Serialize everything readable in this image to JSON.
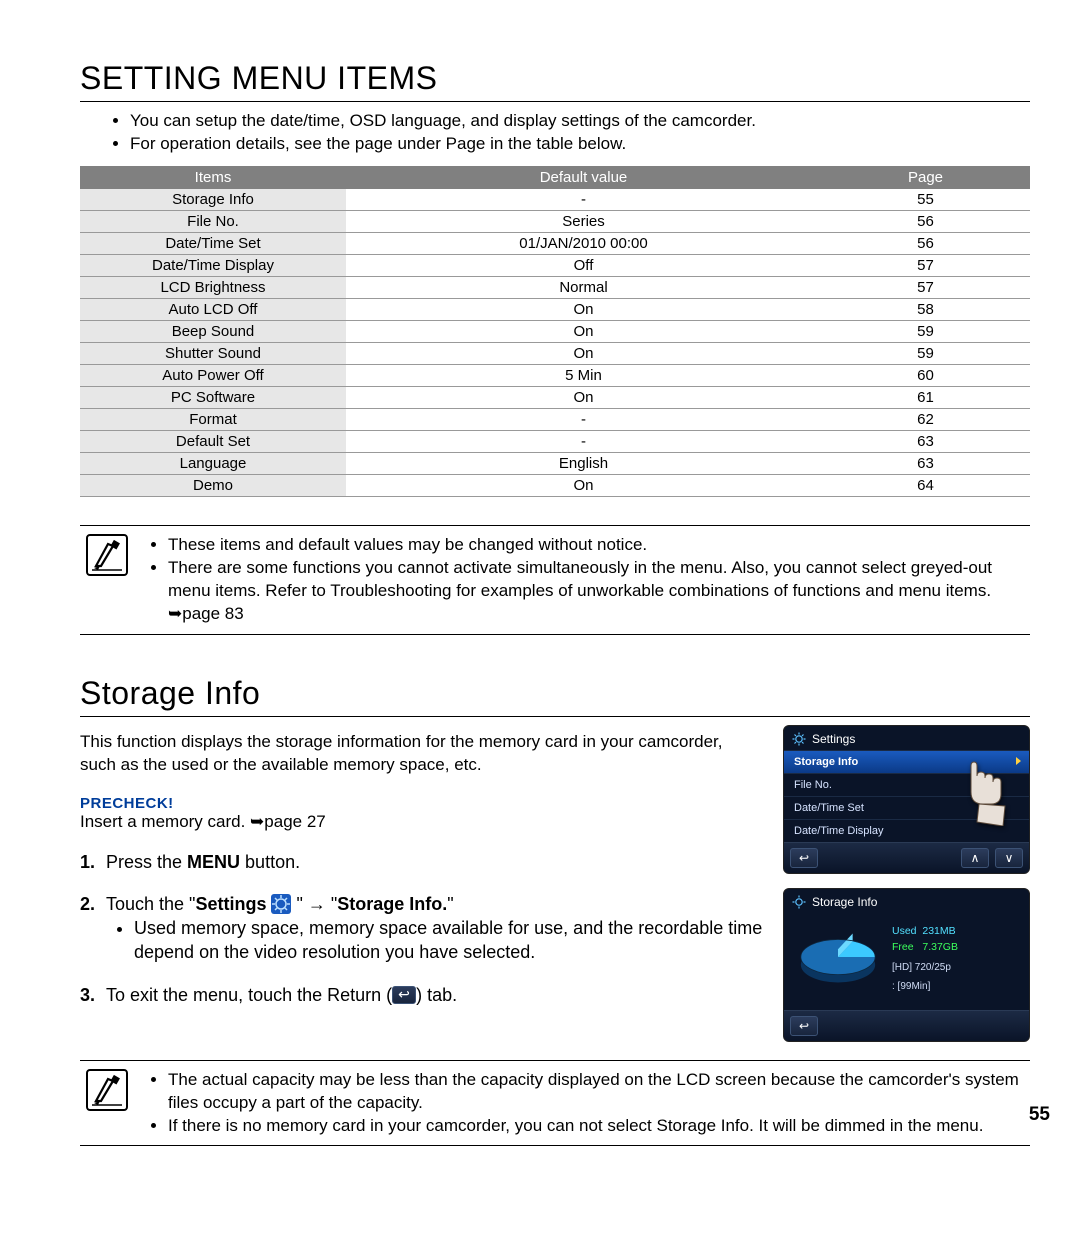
{
  "page_number": "55",
  "heading1": "SETTING MENU ITEMS",
  "intro_bullets": [
    "You can setup the date/time, OSD language, and display settings of the camcorder.",
    "For operation details, see the page under Page in the table below."
  ],
  "table": {
    "columns": [
      "Items",
      "Default value",
      "Page"
    ],
    "col_widths": [
      "28%",
      "50%",
      "22%"
    ],
    "header_bg": "#808080",
    "header_fg": "#ffffff",
    "col0_bg": "#e7e7e7",
    "rows": [
      [
        "Storage Info",
        "-",
        "55"
      ],
      [
        "File No.",
        "Series",
        "56"
      ],
      [
        "Date/Time Set",
        "01/JAN/2010 00:00",
        "56"
      ],
      [
        "Date/Time Display",
        "Off",
        "57"
      ],
      [
        "LCD Brightness",
        "Normal",
        "57"
      ],
      [
        "Auto LCD Off",
        "On",
        "58"
      ],
      [
        "Beep Sound",
        "On",
        "59"
      ],
      [
        "Shutter Sound",
        "On",
        "59"
      ],
      [
        "Auto Power Off",
        "5 Min",
        "60"
      ],
      [
        "PC Software",
        "On",
        "61"
      ],
      [
        "Format",
        "-",
        "62"
      ],
      [
        "Default Set",
        "-",
        "63"
      ],
      [
        "Language",
        "English",
        "63"
      ],
      [
        "Demo",
        "On",
        "64"
      ]
    ]
  },
  "note1": [
    "These items and default values may be changed without notice.",
    "There are some functions you cannot activate simultaneously in the menu. Also, you cannot select greyed-out menu items. Refer to Troubleshooting for examples of unworkable combinations of functions and menu items. ➥page 83"
  ],
  "heading2": "Storage Info",
  "storage_intro": "This function displays the storage information for the memory card in your camcorder, such as the used or the available memory space, etc.",
  "precheck_label": "PRECHECK!",
  "precheck_text": "Insert a memory card. ➥page 27",
  "step1_pre": "Press the ",
  "step1_bold": "MENU",
  "step1_post": " button.",
  "step2_pre": "Touch the \"",
  "step2_settings": "Settings",
  "step2_mid": " \" → \"",
  "step2_storage": "Storage Info.",
  "step2_post": "\"",
  "step2_bullet": "Used memory space, memory space available for use, and the recordable time depend on the video resolution you have selected.",
  "step3_pre": "To exit the menu, touch the Return (",
  "step3_post": ") tab.",
  "note2": [
    "The actual capacity may be less than the capacity displayed on the LCD screen because the camcorder's system files occupy a part of the capacity.",
    "If there is no memory card in your camcorder, you can not select Storage Info. It will be dimmed in the menu."
  ],
  "screen1": {
    "title": "Settings",
    "items": [
      "Storage Info",
      "File No.",
      "Date/Time Set",
      "Date/Time Display"
    ],
    "selected_index": 0
  },
  "screen2": {
    "title": "Storage Info",
    "used_label": "Used",
    "used_val": "231MB",
    "free_label": "Free",
    "free_val": "7.37GB",
    "res1": "[HD] 720/25p",
    "res2": ": [99Min]",
    "used_color": "#52e0ff",
    "free_color": "#3cff5c"
  },
  "colors": {
    "precheck": "#003d9a",
    "screen_bg": "#0a1428",
    "sel_grad_top": "#1a5bbf",
    "sel_grad_bot": "#0b3a87"
  }
}
